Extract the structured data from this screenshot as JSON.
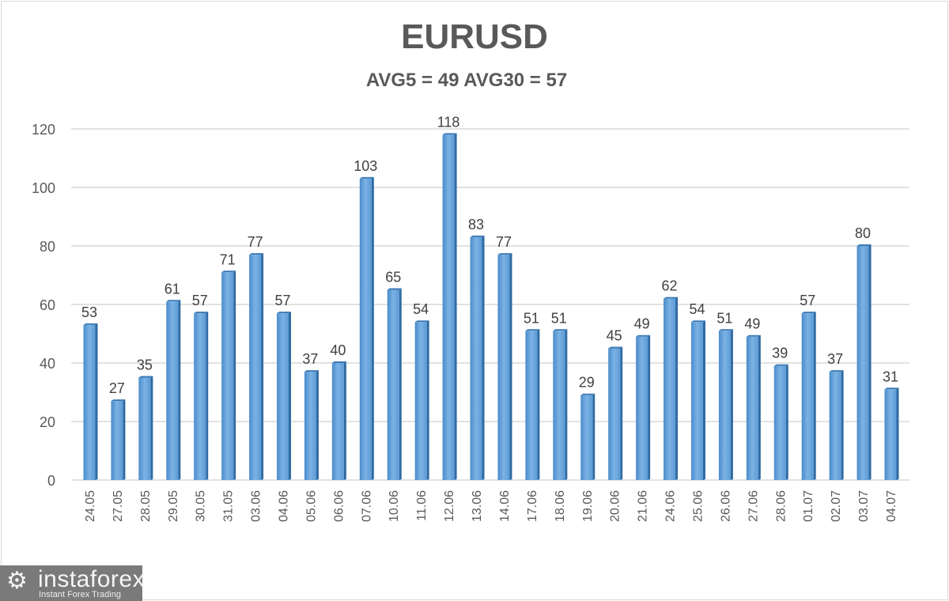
{
  "chart_data": {
    "type": "bar",
    "title": "EURUSD",
    "subtitle": "AVG5 = 49 AVG30 = 57",
    "xlabel": "",
    "ylabel": "",
    "ylim": [
      0,
      120
    ],
    "yticks": [
      0,
      20,
      40,
      60,
      80,
      100,
      120
    ],
    "grid": true,
    "categories": [
      "24.05",
      "27.05",
      "28.05",
      "29.05",
      "30.05",
      "31.05",
      "03.06",
      "04.06",
      "05.06",
      "06.06",
      "07.06",
      "10.06",
      "11.06",
      "12.06",
      "13.06",
      "14.06",
      "17.06",
      "18.06",
      "19.06",
      "20.06",
      "21.06",
      "24.06",
      "25.06",
      "26.06",
      "27.06",
      "28.06",
      "01.07",
      "02.07",
      "03.07",
      "04.07"
    ],
    "values": [
      53,
      27,
      35,
      61,
      57,
      71,
      77,
      57,
      37,
      40,
      103,
      65,
      54,
      118,
      83,
      77,
      51,
      51,
      29,
      45,
      49,
      62,
      54,
      51,
      49,
      39,
      57,
      37,
      80,
      31
    ],
    "bar_color": "#5b9bd5"
  },
  "logo": {
    "name": "instaforex",
    "tagline": "Instant Forex Trading"
  }
}
